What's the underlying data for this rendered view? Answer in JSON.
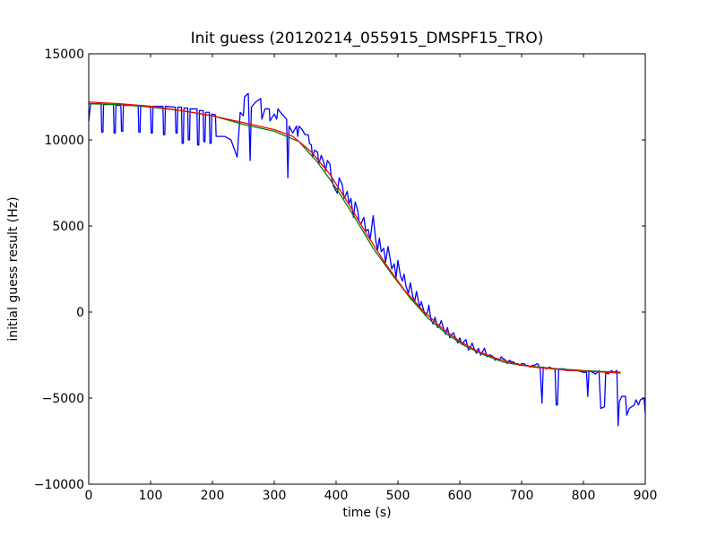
{
  "chart_data": {
    "type": "line",
    "title": "Init guess (20120214_055915_DMSPF15_TRO)",
    "xlabel": "time (s)",
    "ylabel": "initial guess result (Hz)",
    "xlim": [
      0,
      900
    ],
    "ylim": [
      -10000,
      15000
    ],
    "xticks": [
      0,
      100,
      200,
      300,
      400,
      500,
      600,
      700,
      800,
      900
    ],
    "yticks": [
      -10000,
      -5000,
      0,
      5000,
      10000,
      15000
    ],
    "xtick_labels": [
      "0",
      "100",
      "200",
      "300",
      "400",
      "500",
      "600",
      "700",
      "800",
      "900"
    ],
    "ytick_labels": [
      "−10000",
      "−5000",
      "0",
      "5000",
      "10000",
      "15000"
    ],
    "grid": false,
    "legend": false,
    "series": [
      {
        "color": "#0000ff",
        "points": [
          [
            0,
            11100
          ],
          [
            3,
            12100
          ],
          [
            20,
            12100
          ],
          [
            21,
            10450
          ],
          [
            23,
            10450
          ],
          [
            24,
            12050
          ],
          [
            40,
            12050
          ],
          [
            41,
            10400
          ],
          [
            43,
            10400
          ],
          [
            44,
            12000
          ],
          [
            52,
            12000
          ],
          [
            53,
            10500
          ],
          [
            55,
            10500
          ],
          [
            56,
            12000
          ],
          [
            80,
            12000
          ],
          [
            81,
            10450
          ],
          [
            83,
            10450
          ],
          [
            84,
            12000
          ],
          [
            100,
            11950
          ],
          [
            101,
            10400
          ],
          [
            103,
            10400
          ],
          [
            104,
            11950
          ],
          [
            120,
            11950
          ],
          [
            121,
            10300
          ],
          [
            123,
            10300
          ],
          [
            124,
            11950
          ],
          [
            140,
            11900
          ],
          [
            141,
            10400
          ],
          [
            143,
            10400
          ],
          [
            144,
            11900
          ],
          [
            150,
            11900
          ],
          [
            151,
            9800
          ],
          [
            153,
            9800
          ],
          [
            154,
            11850
          ],
          [
            160,
            11850
          ],
          [
            161,
            10000
          ],
          [
            163,
            10000
          ],
          [
            164,
            11800
          ],
          [
            175,
            11800
          ],
          [
            176,
            9700
          ],
          [
            178,
            9700
          ],
          [
            179,
            11700
          ],
          [
            185,
            11700
          ],
          [
            186,
            9900
          ],
          [
            188,
            9900
          ],
          [
            189,
            11600
          ],
          [
            195,
            11600
          ],
          [
            196,
            9800
          ],
          [
            198,
            9800
          ],
          [
            199,
            11500
          ],
          [
            205,
            11450
          ],
          [
            206,
            10200
          ],
          [
            220,
            10200
          ],
          [
            230,
            10000
          ],
          [
            240,
            9000
          ],
          [
            245,
            11600
          ],
          [
            250,
            11400
          ],
          [
            252,
            12500
          ],
          [
            258,
            12700
          ],
          [
            261,
            8800
          ],
          [
            263,
            11900
          ],
          [
            270,
            12200
          ],
          [
            278,
            12400
          ],
          [
            280,
            11200
          ],
          [
            285,
            11800
          ],
          [
            292,
            11800
          ],
          [
            293,
            11100
          ],
          [
            300,
            11500
          ],
          [
            304,
            11200
          ],
          [
            306,
            11800
          ],
          [
            310,
            11600
          ],
          [
            320,
            11200
          ],
          [
            322,
            7800
          ],
          [
            324,
            10800
          ],
          [
            330,
            10400
          ],
          [
            336,
            10800
          ],
          [
            338,
            10200
          ],
          [
            340,
            10800
          ],
          [
            345,
            10600
          ],
          [
            350,
            10300
          ],
          [
            355,
            10300
          ],
          [
            357,
            9800
          ],
          [
            360,
            9700
          ],
          [
            362,
            9000
          ],
          [
            365,
            9400
          ],
          [
            370,
            9300
          ],
          [
            372,
            8600
          ],
          [
            376,
            9100
          ],
          [
            380,
            8700
          ],
          [
            383,
            8200
          ],
          [
            386,
            8800
          ],
          [
            390,
            8600
          ],
          [
            392,
            7900
          ],
          [
            396,
            7300
          ],
          [
            402,
            6900
          ],
          [
            405,
            7800
          ],
          [
            410,
            7400
          ],
          [
            413,
            6600
          ],
          [
            418,
            7000
          ],
          [
            421,
            6300
          ],
          [
            424,
            6600
          ],
          [
            428,
            5500
          ],
          [
            431,
            6400
          ],
          [
            435,
            5900
          ],
          [
            437,
            5300
          ],
          [
            440,
            5100
          ],
          [
            445,
            5500
          ],
          [
            448,
            4700
          ],
          [
            452,
            4800
          ],
          [
            455,
            4200
          ],
          [
            460,
            5600
          ],
          [
            464,
            4200
          ],
          [
            467,
            3600
          ],
          [
            470,
            4300
          ],
          [
            473,
            3500
          ],
          [
            477,
            3700
          ],
          [
            480,
            2900
          ],
          [
            484,
            3800
          ],
          [
            487,
            3200
          ],
          [
            490,
            2500
          ],
          [
            494,
            2800
          ],
          [
            497,
            2000
          ],
          [
            500,
            3000
          ],
          [
            504,
            2100
          ],
          [
            507,
            1800
          ],
          [
            510,
            2200
          ],
          [
            513,
            1500
          ],
          [
            517,
            1100
          ],
          [
            520,
            1700
          ],
          [
            524,
            900
          ],
          [
            527,
            600
          ],
          [
            530,
            1200
          ],
          [
            535,
            300
          ],
          [
            538,
            600
          ],
          [
            540,
            300
          ],
          [
            544,
            -200
          ],
          [
            548,
            0
          ],
          [
            550,
            400
          ],
          [
            553,
            -400
          ],
          [
            557,
            -700
          ],
          [
            560,
            -300
          ],
          [
            564,
            -900
          ],
          [
            567,
            -800
          ],
          [
            570,
            -500
          ],
          [
            574,
            -1000
          ],
          [
            577,
            -1300
          ],
          [
            580,
            -900
          ],
          [
            584,
            -1500
          ],
          [
            587,
            -1300
          ],
          [
            590,
            -1200
          ],
          [
            594,
            -1600
          ],
          [
            597,
            -1800
          ],
          [
            600,
            -1500
          ],
          [
            604,
            -1900
          ],
          [
            607,
            -1700
          ],
          [
            610,
            -1600
          ],
          [
            614,
            -2200
          ],
          [
            617,
            -2100
          ],
          [
            620,
            -1800
          ],
          [
            624,
            -2200
          ],
          [
            627,
            -2400
          ],
          [
            630,
            -2100
          ],
          [
            634,
            -2500
          ],
          [
            637,
            -2300
          ],
          [
            640,
            -2100
          ],
          [
            644,
            -2600
          ],
          [
            647,
            -2500
          ],
          [
            650,
            -2500
          ],
          [
            654,
            -2600
          ],
          [
            657,
            -2800
          ],
          [
            660,
            -2700
          ],
          [
            664,
            -2800
          ],
          [
            667,
            -2600
          ],
          [
            670,
            -2700
          ],
          [
            674,
            -2800
          ],
          [
            677,
            -3000
          ],
          [
            680,
            -2800
          ],
          [
            684,
            -2900
          ],
          [
            687,
            -2900
          ],
          [
            690,
            -3000
          ],
          [
            694,
            -3000
          ],
          [
            697,
            -3100
          ],
          [
            700,
            -3000
          ],
          [
            704,
            -3000
          ],
          [
            707,
            -3100
          ],
          [
            710,
            -3100
          ],
          [
            714,
            -3200
          ],
          [
            717,
            -3100
          ],
          [
            720,
            -3100
          ],
          [
            726,
            -3000
          ],
          [
            730,
            -3300
          ],
          [
            733,
            -5300
          ],
          [
            735,
            -3200
          ],
          [
            740,
            -3300
          ],
          [
            745,
            -3200
          ],
          [
            750,
            -3300
          ],
          [
            754,
            -3300
          ],
          [
            756,
            -5400
          ],
          [
            758,
            -5400
          ],
          [
            760,
            -3300
          ],
          [
            770,
            -3300
          ],
          [
            772,
            -3400
          ],
          [
            780,
            -3400
          ],
          [
            790,
            -3400
          ],
          [
            800,
            -3500
          ],
          [
            805,
            -3500
          ],
          [
            807,
            -4900
          ],
          [
            809,
            -3400
          ],
          [
            820,
            -3600
          ],
          [
            825,
            -3400
          ],
          [
            828,
            -5600
          ],
          [
            834,
            -5500
          ],
          [
            836,
            -3500
          ],
          [
            840,
            -3600
          ],
          [
            845,
            -3400
          ],
          [
            850,
            -3500
          ],
          [
            854,
            -3400
          ],
          [
            856,
            -6600
          ],
          [
            858,
            -5200
          ],
          [
            862,
            -4900
          ],
          [
            868,
            -4900
          ],
          [
            870,
            -6000
          ],
          [
            874,
            -5600
          ],
          [
            878,
            -5500
          ],
          [
            882,
            -5400
          ],
          [
            885,
            -5100
          ],
          [
            889,
            -5400
          ],
          [
            892,
            -5100
          ],
          [
            898,
            -5000
          ],
          [
            900,
            -5900
          ]
        ]
      },
      {
        "color": "#008000",
        "points": [
          [
            0,
            12100
          ],
          [
            50,
            12050
          ],
          [
            100,
            11900
          ],
          [
            150,
            11700
          ],
          [
            200,
            11400
          ],
          [
            250,
            10900
          ],
          [
            300,
            10500
          ],
          [
            340,
            9900
          ],
          [
            370,
            8700
          ],
          [
            400,
            7200
          ],
          [
            430,
            5500
          ],
          [
            460,
            3700
          ],
          [
            490,
            2200
          ],
          [
            520,
            800
          ],
          [
            550,
            -400
          ],
          [
            580,
            -1300
          ],
          [
            610,
            -2000
          ],
          [
            640,
            -2500
          ],
          [
            670,
            -2900
          ],
          [
            700,
            -3100
          ],
          [
            730,
            -3200
          ],
          [
            760,
            -3300
          ],
          [
            800,
            -3400
          ],
          [
            830,
            -3450
          ],
          [
            860,
            -3500
          ]
        ]
      },
      {
        "color": "#ff0000",
        "points": [
          [
            0,
            12200
          ],
          [
            50,
            12100
          ],
          [
            100,
            11950
          ],
          [
            150,
            11700
          ],
          [
            200,
            11400
          ],
          [
            250,
            11000
          ],
          [
            300,
            10600
          ],
          [
            330,
            10200
          ],
          [
            360,
            9300
          ],
          [
            390,
            8000
          ],
          [
            420,
            6300
          ],
          [
            450,
            4500
          ],
          [
            480,
            2800
          ],
          [
            510,
            1300
          ],
          [
            540,
            100
          ],
          [
            570,
            -900
          ],
          [
            600,
            -1700
          ],
          [
            630,
            -2300
          ],
          [
            660,
            -2700
          ],
          [
            690,
            -3000
          ],
          [
            720,
            -3200
          ],
          [
            750,
            -3300
          ],
          [
            780,
            -3400
          ],
          [
            810,
            -3450
          ],
          [
            840,
            -3500
          ],
          [
            860,
            -3550
          ]
        ]
      }
    ]
  }
}
